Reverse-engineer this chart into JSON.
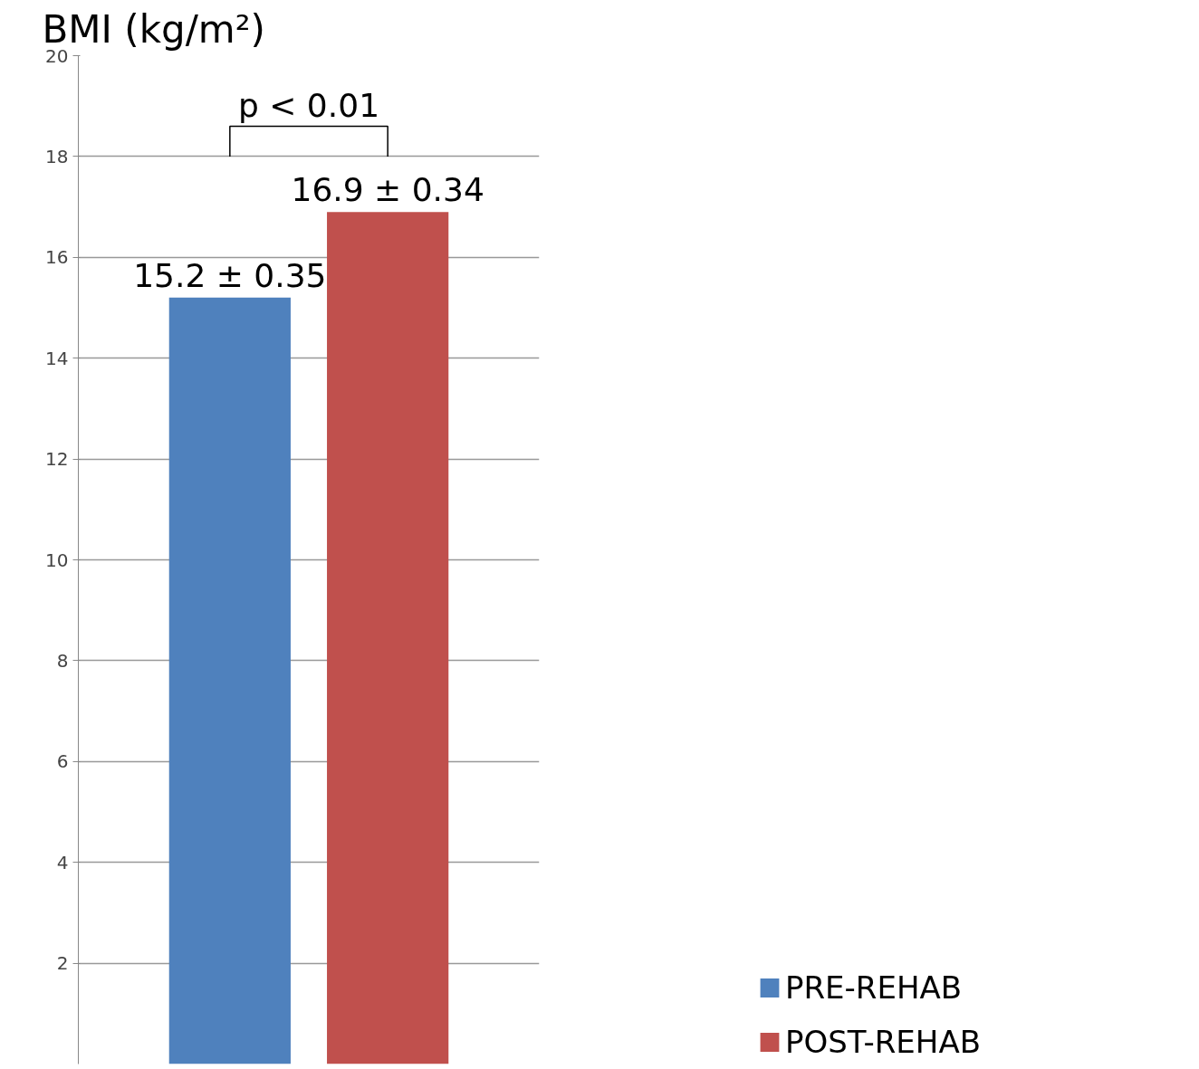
{
  "chart_data": {
    "type": "bar",
    "ylabel": "BMI (kg/m²)",
    "categories": [
      null
    ],
    "series": [
      {
        "name": "PRE-REHAB",
        "color": "#4f81bd",
        "values": [
          15.2
        ],
        "value_labels": [
          "15.2 ± 0.35"
        ]
      },
      {
        "name": "POST-REHAB",
        "color": "#c0504d",
        "values": [
          16.9
        ],
        "value_labels": [
          "16.9 ± 0.34"
        ]
      }
    ],
    "annotations": [
      "p < 0.01"
    ],
    "ylim": [
      0,
      20
    ],
    "yticks": [
      2,
      4,
      6,
      8,
      10,
      12,
      14,
      16,
      18,
      20
    ],
    "grid": "y",
    "legend": "bottom right",
    "tick_labels": "y"
  }
}
